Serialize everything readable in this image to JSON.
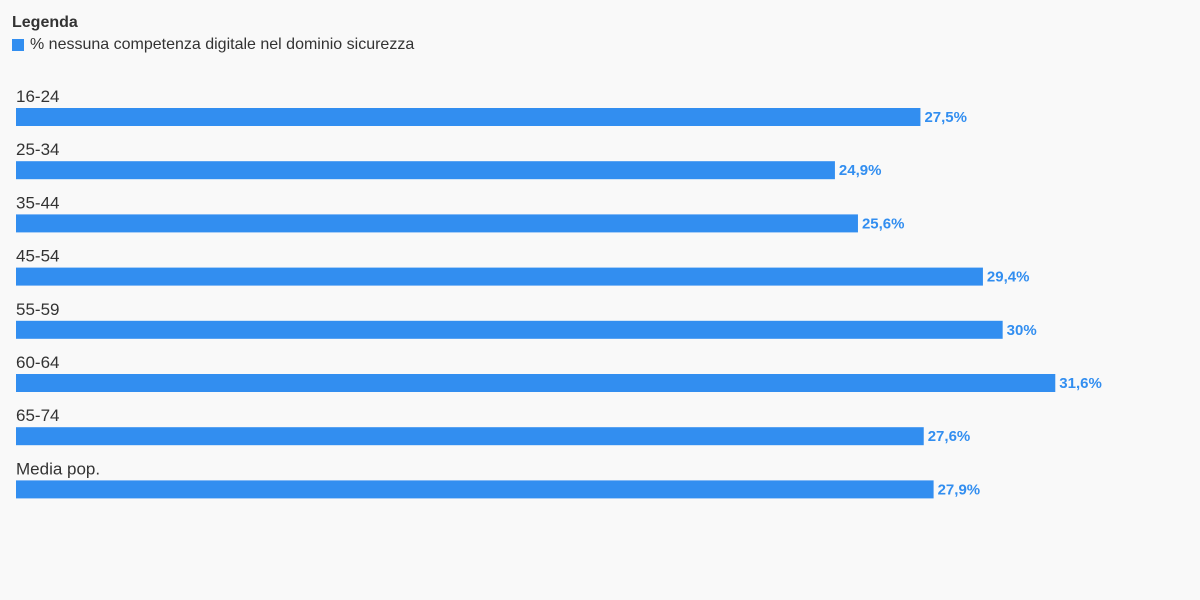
{
  "legend": {
    "title": "Legenda",
    "items": [
      {
        "label": "% nessuna competenza digitale nel dominio sicurezza",
        "color": "#328ef0"
      }
    ]
  },
  "chart_data": {
    "type": "bar",
    "orientation": "horizontal",
    "categories": [
      "16-24",
      "25-34",
      "35-44",
      "45-54",
      "55-59",
      "60-64",
      "65-74",
      "Media pop."
    ],
    "series": [
      {
        "name": "% nessuna competenza digitale nel dominio sicurezza",
        "values": [
          27.5,
          24.9,
          25.6,
          29.4,
          30,
          31.6,
          27.6,
          27.9
        ],
        "labels": [
          "27,5%",
          "24,9%",
          "25,6%",
          "29,4%",
          "30%",
          "31,6%",
          "27,6%",
          "27,9%"
        ],
        "color": "#328ef0"
      }
    ],
    "xlim": [
      0,
      36
    ],
    "grid": false,
    "legend_position": "top-left",
    "data_labels": true
  }
}
